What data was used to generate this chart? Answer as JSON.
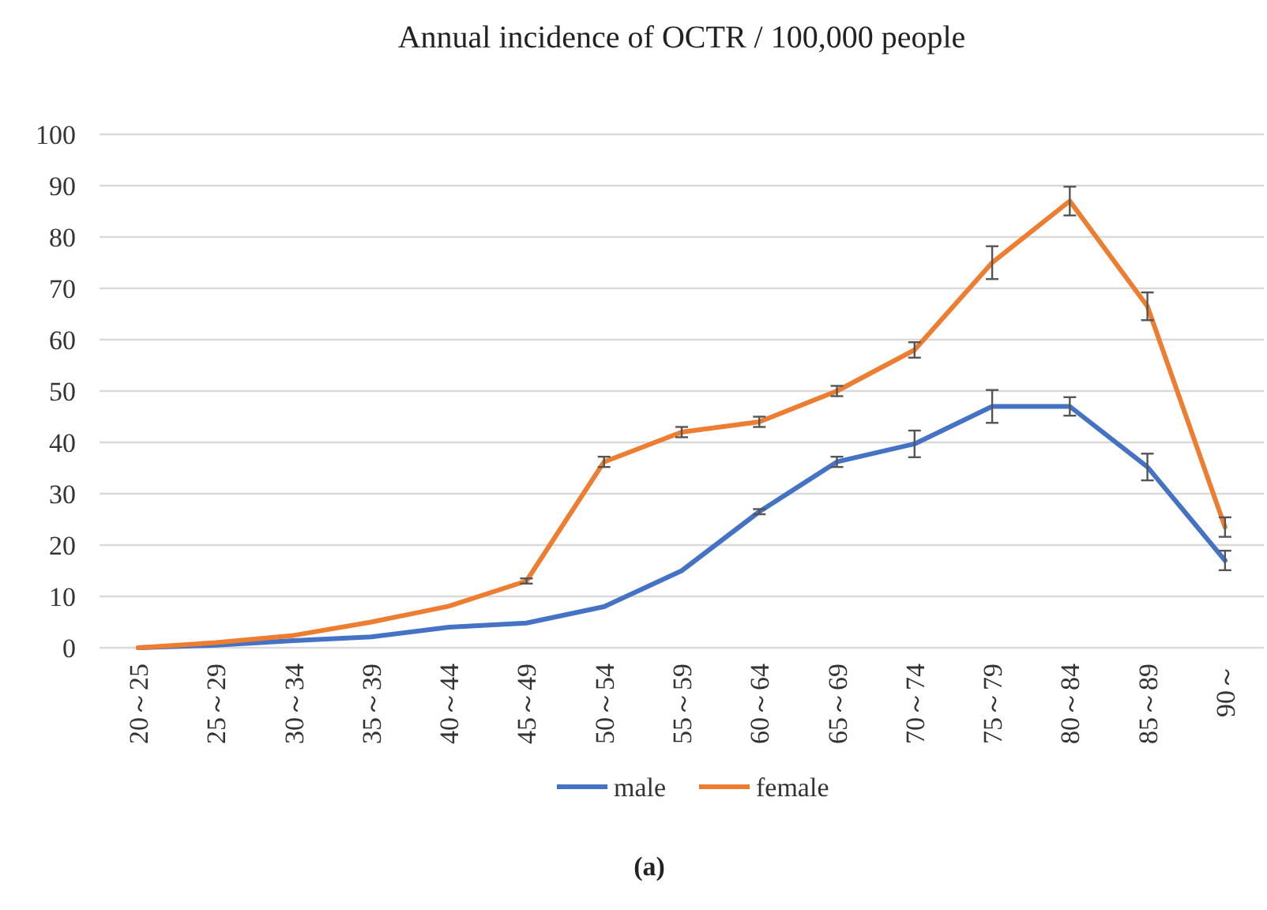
{
  "chart_data": {
    "type": "line",
    "title": "Annual incidence of OCTR / 100,000 people",
    "categories": [
      "20～25",
      "25～29",
      "30～34",
      "35～39",
      "40～44",
      "45～49",
      "50～54",
      "55～59",
      "60～64",
      "65～69",
      "70～74",
      "75～79",
      "80～84",
      "85～89",
      "90～"
    ],
    "series": [
      {
        "name": "male",
        "color": "#4472c4",
        "values": [
          0,
          0.5,
          1.4,
          2.1,
          4,
          4.8,
          8,
          15,
          26.5,
          36.2,
          39.7,
          47,
          47,
          35.2,
          17
        ],
        "errors": [
          null,
          null,
          null,
          null,
          null,
          null,
          null,
          null,
          0.5,
          1,
          2.6,
          3.2,
          1.8,
          2.6,
          1.9
        ]
      },
      {
        "name": "female",
        "color": "#ed7d31",
        "values": [
          0,
          1,
          2.4,
          5,
          8.1,
          13,
          36.2,
          42,
          44,
          50,
          58,
          75,
          87,
          66.5,
          23.5
        ],
        "errors": [
          null,
          null,
          null,
          null,
          null,
          0.5,
          1,
          1,
          1,
          1,
          1.5,
          3.2,
          2.8,
          2.7,
          1.9
        ]
      }
    ],
    "ylim": [
      0,
      100
    ],
    "yticks": [
      0,
      10,
      20,
      30,
      40,
      50,
      60,
      70,
      80,
      90,
      100
    ],
    "grid": "y",
    "legend": "bottom",
    "annotations": [
      "(a)"
    ]
  }
}
